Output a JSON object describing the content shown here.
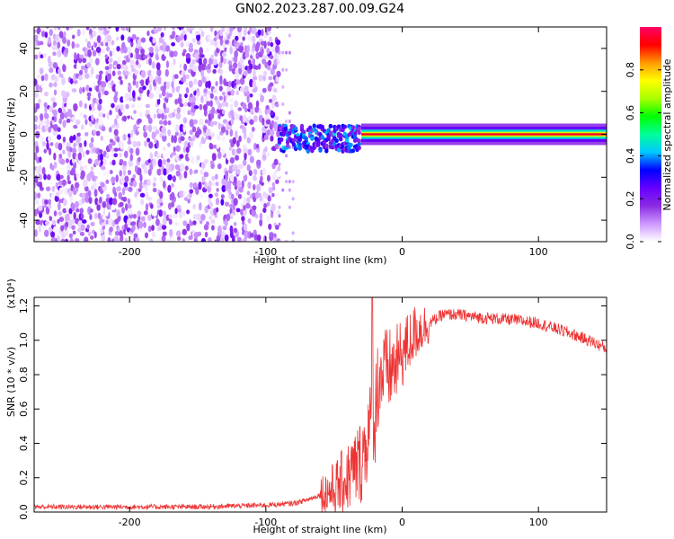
{
  "title": "GN02.2023.287.00.09.G24",
  "chart_data": [
    {
      "type": "heatmap",
      "xlabel": "Height of straight line (km)",
      "ylabel": "Frequency (Hz)",
      "xlim": [
        -270,
        150
      ],
      "ylim": [
        -50,
        50
      ],
      "xticks": [
        -200,
        -100,
        0,
        100
      ],
      "yticks": [
        -40,
        -20,
        0,
        20,
        40
      ],
      "colorbar": {
        "label": "Normalized spectral amplitude",
        "range": [
          0,
          1
        ],
        "ticks": [
          "0.0",
          "0.2",
          "0.4",
          "0.6",
          "0.8"
        ],
        "colors": [
          "#ffffff",
          "#cc99ff",
          "#8a2be2",
          "#6600ff",
          "#0000ff",
          "#00c8ff",
          "#00ff99",
          "#00ff00",
          "#aaff00",
          "#ffff00",
          "#ff9900",
          "#ff0000",
          "#ff0066"
        ]
      },
      "segments": [
        {
          "name": "noise",
          "x": [
            -270,
            -90
          ],
          "freq_range": [
            -50,
            50
          ],
          "amplitude": [
            0.0,
            0.15
          ]
        },
        {
          "name": "transition",
          "x": [
            -90,
            -30
          ],
          "freq_center": [
            -5,
            0
          ],
          "amplitude": [
            0.15,
            0.45
          ]
        },
        {
          "name": "signal",
          "x": [
            -30,
            150
          ],
          "freq_center": 0,
          "amplitude": [
            0.8,
            1.0
          ]
        }
      ]
    },
    {
      "type": "line",
      "xlabel": "Height of straight line (km)",
      "ylabel": "SNR (10 * v/v)",
      "yscale_note": "(x10⁴)",
      "xlim": [
        -270,
        150
      ],
      "ylim": [
        0,
        1.25
      ],
      "xticks": [
        -200,
        -100,
        0,
        100
      ],
      "yticks": [
        "0.0",
        "0.2",
        "0.4",
        "0.6",
        "0.8",
        "1.0",
        "1.2"
      ],
      "color": "#ee3333",
      "x": [
        -270,
        -200,
        -150,
        -100,
        -80,
        -70,
        -60,
        -50,
        -40,
        -30,
        -25,
        -20,
        -18,
        -15,
        -10,
        -5,
        0,
        10,
        20,
        30,
        40,
        50,
        60,
        80,
        100,
        120,
        140,
        150
      ],
      "y": [
        0.03,
        0.03,
        0.03,
        0.04,
        0.05,
        0.07,
        0.1,
        0.13,
        0.2,
        0.3,
        0.45,
        0.55,
        0.75,
        0.8,
        0.82,
        0.85,
        0.92,
        1.05,
        1.1,
        1.15,
        1.15,
        1.14,
        1.13,
        1.12,
        1.1,
        1.05,
        0.99,
        0.95
      ],
      "spike": {
        "x": -22,
        "y": 1.25
      }
    }
  ]
}
